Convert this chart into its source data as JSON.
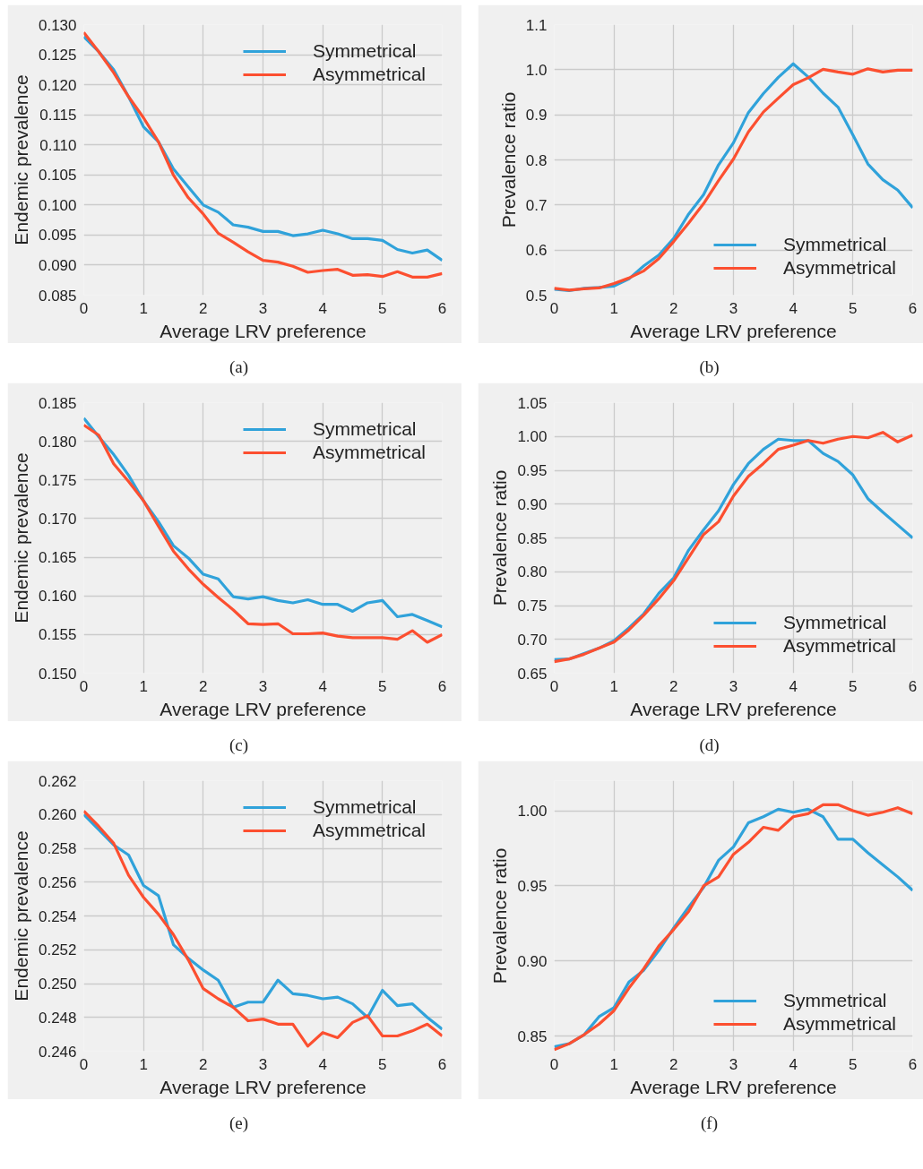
{
  "chart_data": [
    {
      "type": "line",
      "xlabel": "Average LRV preference",
      "ylabel": "Endemic prevalence",
      "annotations": [
        "(a)"
      ],
      "legend": "top right",
      "grid": true,
      "line_style": "solid",
      "x": [
        0,
        0.25,
        0.5,
        0.75,
        1,
        1.25,
        1.5,
        1.75,
        2,
        2.25,
        2.5,
        2.75,
        3,
        3.25,
        3.5,
        3.75,
        4,
        4.25,
        4.5,
        4.75,
        5,
        5.25,
        5.5,
        5.75,
        6
      ],
      "xlim": [
        0,
        6
      ],
      "xticks": [
        0,
        1,
        2,
        3,
        4,
        5,
        6
      ],
      "ylim": [
        0.085,
        0.13
      ],
      "yticks": [
        {
          "value": 0.085,
          "label": "0.085"
        },
        {
          "value": 0.09,
          "label": "0.090"
        },
        {
          "value": 0.095,
          "label": "0.095"
        },
        {
          "value": 0.1,
          "label": "0.100"
        },
        {
          "value": 0.105,
          "label": "0.105"
        },
        {
          "value": 0.11,
          "label": "0.110"
        },
        {
          "value": 0.115,
          "label": "0.115"
        },
        {
          "value": 0.12,
          "label": "0.120"
        },
        {
          "value": 0.125,
          "label": "0.125"
        },
        {
          "value": 0.13,
          "label": "0.130"
        }
      ],
      "series": [
        {
          "name": "Symmetrical",
          "color": "#30a2da",
          "values": [
            0.128,
            0.1255,
            0.1225,
            0.118,
            0.113,
            0.1105,
            0.106,
            0.103,
            0.1,
            0.0988,
            0.0967,
            0.0963,
            0.0956,
            0.0956,
            0.0949,
            0.0952,
            0.0958,
            0.0952,
            0.0944,
            0.0944,
            0.0941,
            0.0926,
            0.092,
            0.0925,
            0.0908
          ]
        },
        {
          "name": "Asymmetrical",
          "color": "#fc4f30",
          "values": [
            0.1287,
            0.1255,
            0.122,
            0.118,
            0.1145,
            0.1105,
            0.105,
            0.1012,
            0.0985,
            0.0953,
            0.0938,
            0.0922,
            0.0908,
            0.0905,
            0.0898,
            0.0888,
            0.0891,
            0.0893,
            0.0883,
            0.0884,
            0.0881,
            0.0889,
            0.088,
            0.088,
            0.0886
          ]
        }
      ]
    },
    {
      "type": "line",
      "xlabel": "Average LRV preference",
      "ylabel": "Prevalence ratio",
      "annotations": [
        "(b)"
      ],
      "legend": "bottom right",
      "grid": true,
      "line_style": "solid",
      "x": [
        0,
        0.25,
        0.5,
        0.75,
        1,
        1.25,
        1.5,
        1.75,
        2,
        2.25,
        2.5,
        2.75,
        3,
        3.25,
        3.5,
        3.75,
        4,
        4.25,
        4.5,
        4.75,
        5,
        5.25,
        5.5,
        5.75,
        6
      ],
      "xlim": [
        0,
        6
      ],
      "xticks": [
        0,
        1,
        2,
        3,
        4,
        5,
        6
      ],
      "ylim": [
        0.5,
        1.1
      ],
      "yticks": [
        0.5,
        0.6,
        0.7,
        0.8,
        0.9,
        {
          "value": 1,
          "label": "1.0"
        },
        1.1
      ],
      "series": [
        {
          "name": "Symmetrical",
          "color": "#30a2da",
          "values": [
            0.513,
            0.51,
            0.515,
            0.517,
            0.52,
            0.536,
            0.565,
            0.589,
            0.626,
            0.68,
            0.723,
            0.789,
            0.838,
            0.905,
            0.947,
            0.983,
            1.013,
            0.984,
            0.948,
            0.917,
            0.855,
            0.791,
            0.756,
            0.733,
            0.694
          ]
        },
        {
          "name": "Asymmetrical",
          "color": "#fc4f30",
          "values": [
            0.515,
            0.511,
            0.514,
            0.516,
            0.526,
            0.538,
            0.554,
            0.581,
            0.619,
            0.66,
            0.703,
            0.754,
            0.802,
            0.862,
            0.906,
            0.937,
            0.967,
            0.982,
            1.001,
            0.995,
            0.99,
            1.002,
            0.995,
            0.999,
            0.999
          ]
        }
      ]
    },
    {
      "type": "line",
      "xlabel": "Average LRV preference",
      "ylabel": "Endemic prevalence",
      "annotations": [
        "(c)"
      ],
      "legend": "top right",
      "grid": true,
      "line_style": "solid",
      "x": [
        0,
        0.25,
        0.5,
        0.75,
        1,
        1.25,
        1.5,
        1.75,
        2,
        2.25,
        2.5,
        2.75,
        3,
        3.25,
        3.5,
        3.75,
        4,
        4.25,
        4.5,
        4.75,
        5,
        5.25,
        5.5,
        5.75,
        6
      ],
      "xlim": [
        0,
        6
      ],
      "xticks": [
        0,
        1,
        2,
        3,
        4,
        5,
        6
      ],
      "ylim": [
        0.15,
        0.185
      ],
      "yticks": [
        {
          "value": 0.15,
          "label": "0.150"
        },
        0.155,
        {
          "value": 0.16,
          "label": "0.160"
        },
        0.165,
        {
          "value": 0.17,
          "label": "0.170"
        },
        0.175,
        {
          "value": 0.18,
          "label": "0.180"
        },
        0.185
      ],
      "series": [
        {
          "name": "Symmetrical",
          "color": "#30a2da",
          "values": [
            0.183,
            0.1806,
            0.1783,
            0.1756,
            0.1723,
            0.1696,
            0.1665,
            0.1649,
            0.1628,
            0.1622,
            0.1599,
            0.1596,
            0.1599,
            0.1594,
            0.1591,
            0.1595,
            0.1589,
            0.1589,
            0.158,
            0.1591,
            0.1594,
            0.1573,
            0.1576,
            0.1568,
            0.156
          ]
        },
        {
          "name": "Asymmetrical",
          "color": "#fc4f30",
          "values": [
            0.1821,
            0.1808,
            0.1771,
            0.1748,
            0.1723,
            0.169,
            0.1658,
            0.1635,
            0.1615,
            0.1598,
            0.1582,
            0.1564,
            0.1563,
            0.1564,
            0.1551,
            0.1551,
            0.1552,
            0.1548,
            0.1546,
            0.1546,
            0.1546,
            0.1544,
            0.1555,
            0.154,
            0.155
          ]
        }
      ]
    },
    {
      "type": "line",
      "xlabel": "Average LRV preference",
      "ylabel": "Prevalence ratio",
      "annotations": [
        "(d)"
      ],
      "legend": "bottom right",
      "grid": true,
      "line_style": "solid",
      "x": [
        0,
        0.25,
        0.5,
        0.75,
        1,
        1.25,
        1.5,
        1.75,
        2,
        2.25,
        2.5,
        2.75,
        3,
        3.25,
        3.5,
        3.75,
        4,
        4.25,
        4.5,
        4.75,
        5,
        5.25,
        5.5,
        5.75,
        6
      ],
      "xlim": [
        0,
        6
      ],
      "xticks": [
        0,
        1,
        2,
        3,
        4,
        5,
        6
      ],
      "ylim": [
        0.65,
        1.05
      ],
      "yticks": [
        0.65,
        {
          "value": 0.7,
          "label": "0.70"
        },
        0.75,
        {
          "value": 0.8,
          "label": "0.80"
        },
        0.85,
        {
          "value": 0.9,
          "label": "0.90"
        },
        0.95,
        {
          "value": 1,
          "label": "1.00"
        },
        1.05
      ],
      "series": [
        {
          "name": "Symmetrical",
          "color": "#30a2da",
          "values": [
            0.67,
            0.671,
            0.679,
            0.687,
            0.698,
            0.717,
            0.738,
            0.768,
            0.791,
            0.832,
            0.862,
            0.89,
            0.929,
            0.96,
            0.981,
            0.996,
            0.994,
            0.994,
            0.975,
            0.963,
            0.943,
            0.908,
            0.888,
            0.869,
            0.85
          ]
        },
        {
          "name": "Asymmetrical",
          "color": "#fc4f30",
          "values": [
            0.667,
            0.671,
            0.678,
            0.687,
            0.696,
            0.714,
            0.736,
            0.76,
            0.787,
            0.821,
            0.855,
            0.874,
            0.912,
            0.941,
            0.96,
            0.981,
            0.987,
            0.994,
            0.99,
            0.996,
            1.0,
            0.998,
            1.006,
            0.992,
            1.002
          ]
        }
      ]
    },
    {
      "type": "line",
      "xlabel": "Average LRV preference",
      "ylabel": "Endemic prevalence",
      "annotations": [
        "(e)"
      ],
      "legend": "top right",
      "grid": true,
      "line_style": "solid",
      "x": [
        0,
        0.25,
        0.5,
        0.75,
        1,
        1.25,
        1.5,
        1.75,
        2,
        2.25,
        2.5,
        2.75,
        3,
        3.25,
        3.5,
        3.75,
        4,
        4.25,
        4.5,
        4.75,
        5,
        5.25,
        5.5,
        5.75,
        6
      ],
      "xlim": [
        0,
        6
      ],
      "xticks": [
        0,
        1,
        2,
        3,
        4,
        5,
        6
      ],
      "ylim": [
        0.246,
        0.262
      ],
      "yticks": [
        0.246,
        0.248,
        {
          "value": 0.25,
          "label": "0.250"
        },
        0.252,
        0.254,
        0.256,
        0.258,
        {
          "value": 0.26,
          "label": "0.260"
        },
        0.262
      ],
      "series": [
        {
          "name": "Symmetrical",
          "color": "#30a2da",
          "values": [
            0.26,
            0.2591,
            0.2582,
            0.2576,
            0.2558,
            0.2552,
            0.2523,
            0.2515,
            0.2508,
            0.2502,
            0.2486,
            0.2489,
            0.2489,
            0.2502,
            0.2494,
            0.2493,
            0.2491,
            0.2492,
            0.2488,
            0.248,
            0.2496,
            0.2487,
            0.2488,
            0.248,
            0.2473
          ]
        },
        {
          "name": "Asymmetrical",
          "color": "#fc4f30",
          "values": [
            0.2602,
            0.2593,
            0.2583,
            0.2564,
            0.2551,
            0.2541,
            0.2529,
            0.2514,
            0.2497,
            0.2491,
            0.2486,
            0.2478,
            0.2479,
            0.2476,
            0.2476,
            0.2463,
            0.2471,
            0.2468,
            0.2477,
            0.2481,
            0.2469,
            0.2469,
            0.2472,
            0.2476,
            0.2469
          ]
        }
      ]
    },
    {
      "type": "line",
      "xlabel": "Average LRV preference",
      "ylabel": "Prevalence ratio",
      "annotations": [
        "(f)"
      ],
      "legend": "bottom right",
      "grid": true,
      "line_style": "solid",
      "x": [
        0,
        0.25,
        0.5,
        0.75,
        1,
        1.25,
        1.5,
        1.75,
        2,
        2.25,
        2.5,
        2.75,
        3,
        3.25,
        3.5,
        3.75,
        4,
        4.25,
        4.5,
        4.75,
        5,
        5.25,
        5.5,
        5.75,
        6
      ],
      "xlim": [
        0,
        6
      ],
      "xticks": [
        0,
        1,
        2,
        3,
        4,
        5,
        6
      ],
      "ylim": [
        0.84,
        1.02
      ],
      "yticks": [
        0.85,
        {
          "value": 0.9,
          "label": "0.90"
        },
        0.95,
        {
          "value": 1,
          "label": "1.00"
        }
      ],
      "series": [
        {
          "name": "Symmetrical",
          "color": "#30a2da",
          "values": [
            0.843,
            0.845,
            0.851,
            0.863,
            0.869,
            0.886,
            0.894,
            0.907,
            0.922,
            0.936,
            0.949,
            0.967,
            0.976,
            0.992,
            0.996,
            1.001,
            0.999,
            1.001,
            0.996,
            0.981,
            0.981,
            0.972,
            0.964,
            0.956,
            0.947
          ]
        },
        {
          "name": "Asymmetrical",
          "color": "#fc4f30",
          "values": [
            0.841,
            0.845,
            0.851,
            0.858,
            0.867,
            0.882,
            0.895,
            0.91,
            0.921,
            0.933,
            0.95,
            0.956,
            0.971,
            0.979,
            0.989,
            0.987,
            0.996,
            0.998,
            1.004,
            1.004,
            1.0,
            0.997,
            0.999,
            1.002,
            0.998
          ]
        }
      ]
    }
  ]
}
